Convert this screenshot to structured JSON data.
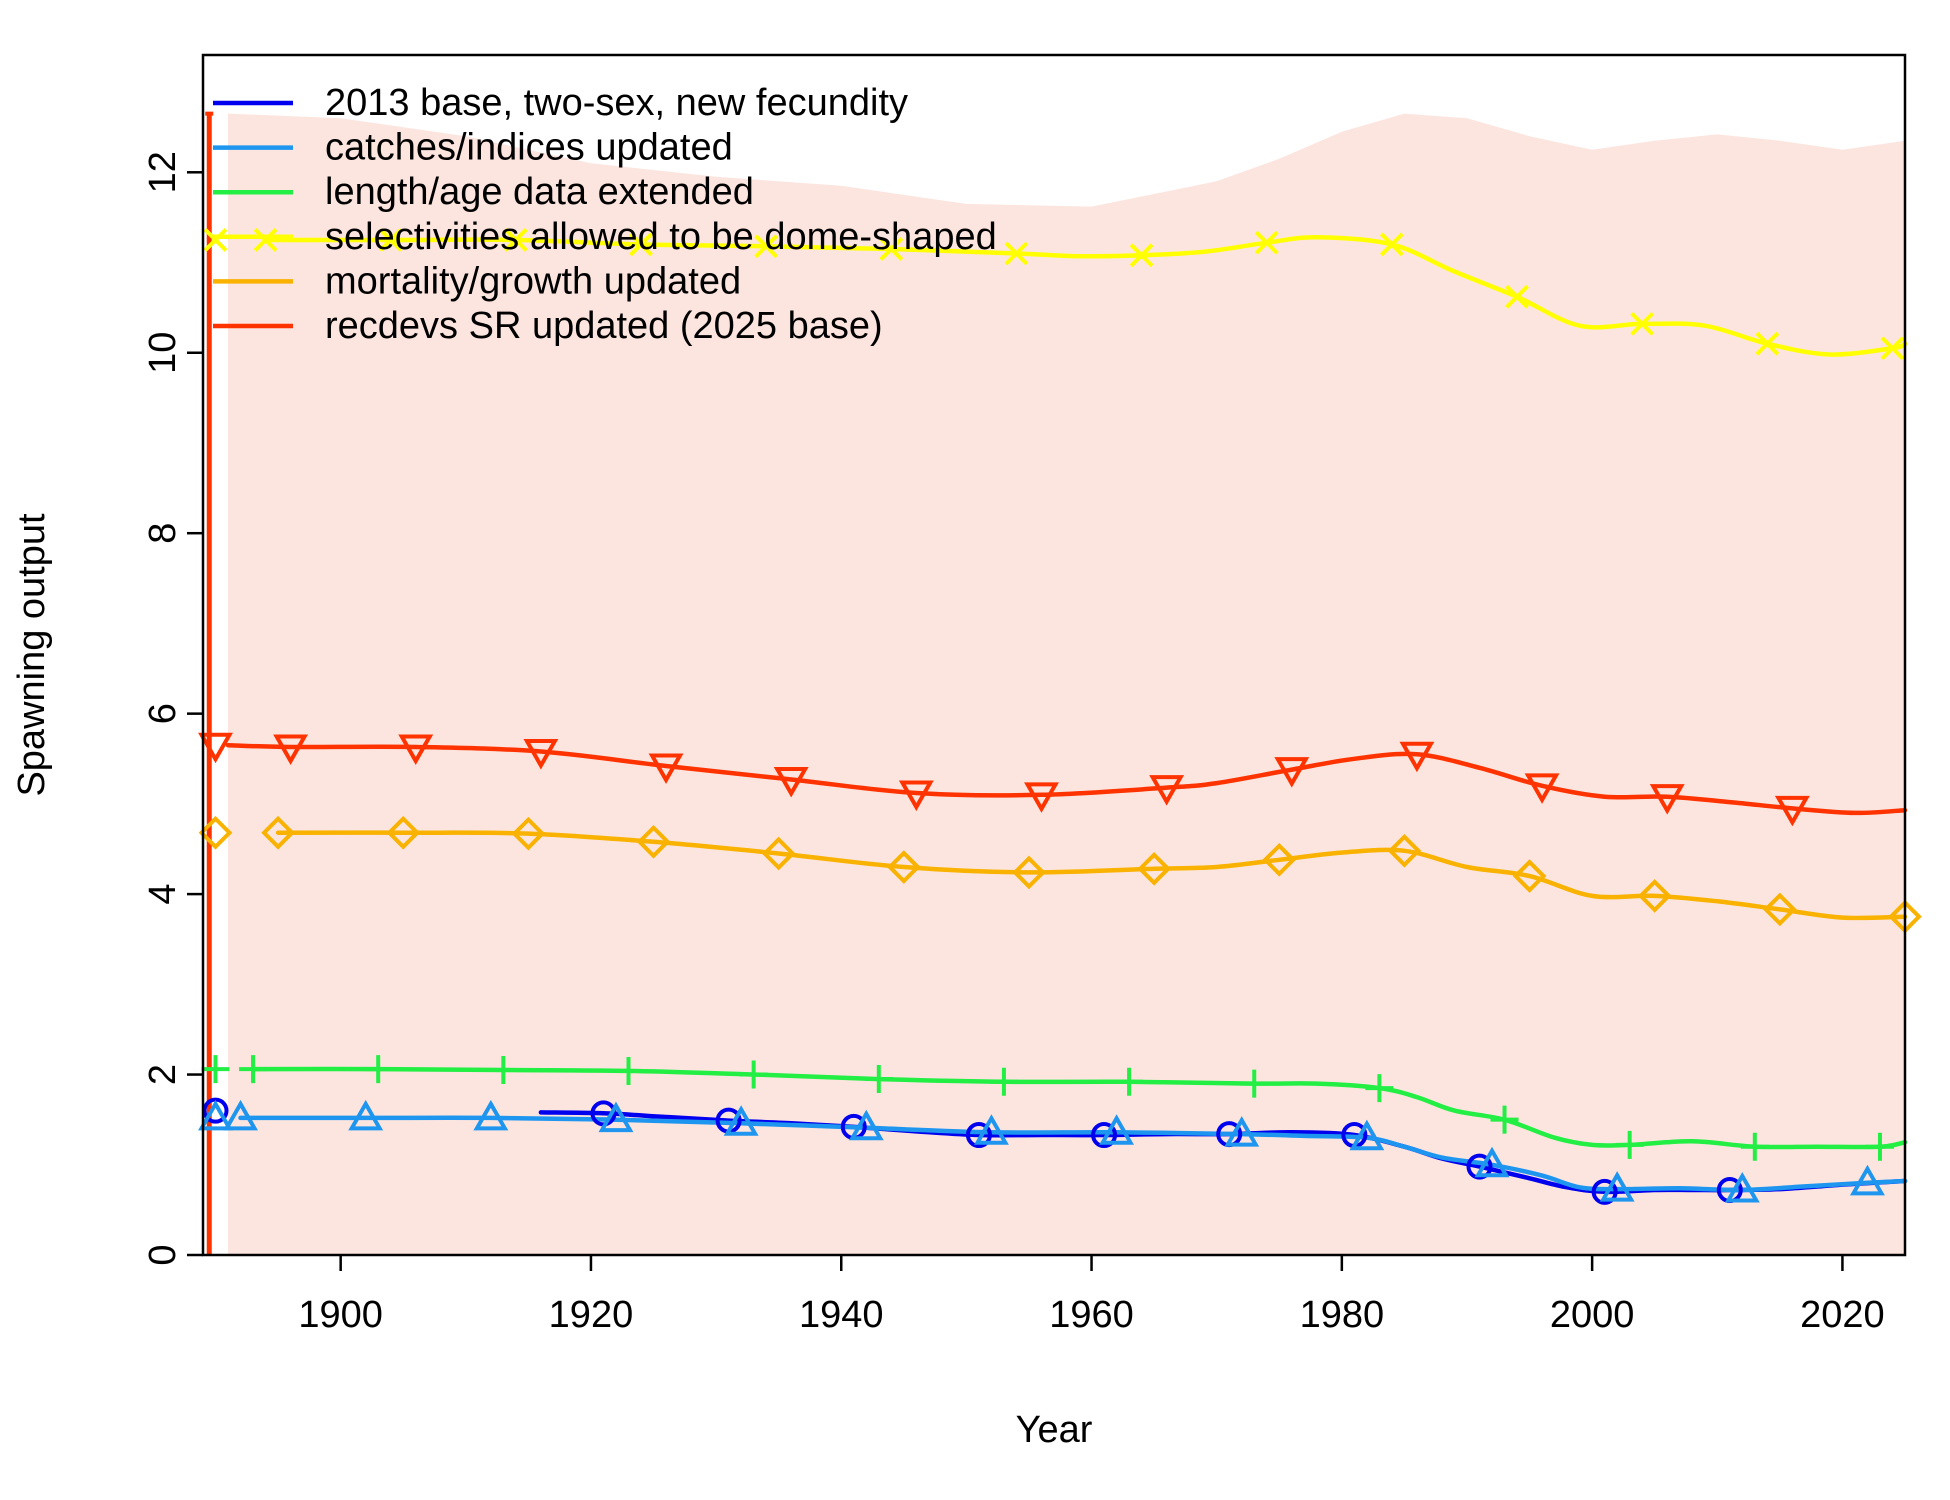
{
  "chart_data": {
    "type": "line",
    "xlabel": "Year",
    "ylabel": "Spawning output",
    "xlim": [
      1889,
      2025
    ],
    "ylim": [
      0,
      13.3
    ],
    "xticks": [
      1900,
      1920,
      1940,
      1960,
      1980,
      2000,
      2020
    ],
    "yticks": [
      0,
      2,
      4,
      6,
      8,
      10,
      12
    ],
    "legend_position": "top-left",
    "grid": false,
    "uncertainty_band": {
      "series": "recdevs SR updated (2025 base)",
      "color": "#fde5df",
      "x": [
        1891,
        1900,
        1910,
        1920,
        1930,
        1940,
        1950,
        1960,
        1970,
        1975,
        1980,
        1985,
        1990,
        1995,
        2000,
        2005,
        2010,
        2015,
        2020,
        2025
      ],
      "upper": [
        12.65,
        12.6,
        12.4,
        12.1,
        11.95,
        11.85,
        11.65,
        11.62,
        11.9,
        12.15,
        12.45,
        12.65,
        12.6,
        12.4,
        12.25,
        12.35,
        12.42,
        12.35,
        12.25,
        12.35
      ],
      "lower": [
        0,
        0,
        0,
        0,
        0,
        0,
        0,
        0,
        0,
        0,
        0,
        0,
        0,
        0,
        0,
        0,
        0,
        0,
        0,
        0
      ]
    },
    "initial_interval": {
      "series": "recdevs SR updated (2025 base)",
      "x": 1889.5,
      "lower": 0,
      "upper": 12.65
    },
    "series": [
      {
        "name": "2013 base, two-sex, new fecundity",
        "color": "#0000ee",
        "marker": "circle",
        "virgin": {
          "x": 1890,
          "y": 1.6
        },
        "x": [
          1916,
          1921,
          1926,
          1931,
          1936,
          1941,
          1946,
          1951,
          1956,
          1961,
          1966,
          1971,
          1976,
          1981,
          1985,
          1988,
          1991,
          1995,
          1998,
          2001,
          2005,
          2008,
          2011,
          2015,
          2020,
          2025
        ],
        "y": [
          1.58,
          1.57,
          1.53,
          1.49,
          1.46,
          1.42,
          1.37,
          1.33,
          1.33,
          1.33,
          1.34,
          1.34,
          1.36,
          1.33,
          1.2,
          1.07,
          0.98,
          0.85,
          0.75,
          0.7,
          0.72,
          0.72,
          0.72,
          0.73,
          0.78,
          0.82
        ],
        "marker_x": [
          1921,
          1931,
          1941,
          1951,
          1961,
          1971,
          1981,
          1991,
          2001,
          2011
        ]
      },
      {
        "name": "catches/indices updated",
        "color": "#1e96f0",
        "marker": "triangle-up",
        "virgin": {
          "x": 1890,
          "y": 1.52
        },
        "x": [
          1892,
          1902,
          1912,
          1922,
          1932,
          1942,
          1952,
          1962,
          1972,
          1977,
          1982,
          1985,
          1988,
          1992,
          1996,
          1999,
          2002,
          2007,
          2012,
          2017,
          2022,
          2025
        ],
        "y": [
          1.52,
          1.52,
          1.52,
          1.5,
          1.46,
          1.41,
          1.36,
          1.36,
          1.34,
          1.32,
          1.3,
          1.2,
          1.08,
          1.0,
          0.88,
          0.75,
          0.73,
          0.74,
          0.72,
          0.76,
          0.8,
          0.82
        ],
        "marker_x": [
          1892,
          1902,
          1912,
          1922,
          1932,
          1942,
          1952,
          1962,
          1972,
          1982,
          1992,
          2002,
          2012,
          2022
        ]
      },
      {
        "name": "length/age data extended",
        "color": "#22ee44",
        "marker": "plus",
        "virgin": {
          "x": 1890,
          "y": 2.06
        },
        "x": [
          1893,
          1903,
          1913,
          1923,
          1933,
          1943,
          1953,
          1963,
          1973,
          1978,
          1983,
          1986,
          1989,
          1993,
          1997,
          2000,
          2003,
          2008,
          2013,
          2018,
          2023,
          2025
        ],
        "y": [
          2.06,
          2.06,
          2.05,
          2.04,
          2.0,
          1.95,
          1.92,
          1.92,
          1.9,
          1.9,
          1.85,
          1.75,
          1.6,
          1.5,
          1.3,
          1.22,
          1.22,
          1.26,
          1.2,
          1.2,
          1.2,
          1.25
        ],
        "marker_x": [
          1893,
          1903,
          1913,
          1923,
          1933,
          1943,
          1953,
          1963,
          1973,
          1983,
          1993,
          2003,
          2013,
          2023
        ]
      },
      {
        "name": "selectivities allowed to be dome-shaped",
        "color": "#ffff00",
        "marker": "x",
        "virgin": {
          "x": 1890,
          "y": 11.25
        },
        "x": [
          1894,
          1904,
          1914,
          1924,
          1934,
          1944,
          1954,
          1959,
          1964,
          1969,
          1974,
          1978,
          1984,
          1989,
          1994,
          1999,
          2004,
          2009,
          2014,
          2019,
          2024,
          2025
        ],
        "y": [
          11.25,
          11.25,
          11.25,
          11.2,
          11.18,
          11.15,
          11.1,
          11.07,
          11.08,
          11.12,
          11.22,
          11.28,
          11.2,
          10.9,
          10.62,
          10.3,
          10.32,
          10.3,
          10.1,
          9.98,
          10.05,
          10.1
        ],
        "marker_x": [
          1894,
          1904,
          1914,
          1924,
          1934,
          1944,
          1954,
          1964,
          1974,
          1984,
          1994,
          2004,
          2014,
          2024
        ]
      },
      {
        "name": "mortality/growth updated",
        "color": "#f9b200",
        "marker": "diamond",
        "virgin": {
          "x": 1890,
          "y": 4.68
        },
        "x": [
          1895,
          1905,
          1915,
          1925,
          1935,
          1945,
          1955,
          1965,
          1970,
          1975,
          1980,
          1985,
          1990,
          1995,
          2000,
          2005,
          2010,
          2015,
          2020,
          2025
        ],
        "y": [
          4.68,
          4.68,
          4.67,
          4.58,
          4.45,
          4.3,
          4.24,
          4.28,
          4.3,
          4.38,
          4.46,
          4.48,
          4.3,
          4.2,
          3.98,
          3.98,
          3.92,
          3.83,
          3.74,
          3.75
        ],
        "marker_x": [
          1895,
          1905,
          1915,
          1925,
          1935,
          1945,
          1955,
          1965,
          1975,
          1985,
          1995,
          2005,
          2015,
          2025
        ]
      },
      {
        "name": "recdevs SR updated (2025 base)",
        "color": "#ff3300",
        "marker": "triangle-down",
        "virgin": {
          "x": 1890,
          "y": 5.65
        },
        "x": [
          1891,
          1896,
          1906,
          1916,
          1926,
          1936,
          1946,
          1956,
          1966,
          1970,
          1976,
          1981,
          1986,
          1991,
          1996,
          2001,
          2006,
          2011,
          2016,
          2021,
          2025
        ],
        "y": [
          5.65,
          5.63,
          5.63,
          5.58,
          5.42,
          5.27,
          5.12,
          5.1,
          5.18,
          5.23,
          5.38,
          5.5,
          5.55,
          5.4,
          5.2,
          5.08,
          5.08,
          5.02,
          4.95,
          4.9,
          4.93
        ],
        "marker_x": [
          1896,
          1906,
          1916,
          1926,
          1936,
          1946,
          1956,
          1966,
          1976,
          1986,
          1996,
          2006,
          2016
        ]
      }
    ]
  }
}
